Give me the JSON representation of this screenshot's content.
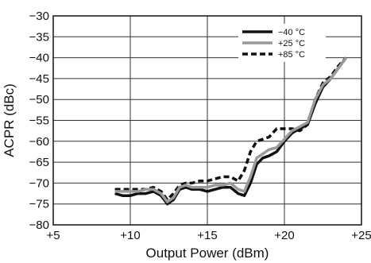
{
  "chart_data": {
    "type": "line",
    "title": "",
    "xlabel": "Output Power (dBm)",
    "ylabel": "ACPR (dBc)",
    "xlim": [
      5,
      25
    ],
    "ylim": [
      -80,
      -30
    ],
    "xticks": [
      5,
      10,
      15,
      20,
      25
    ],
    "xtick_labels": [
      "+5",
      "+10",
      "+15",
      "+20",
      "+25"
    ],
    "yticks": [
      -80,
      -75,
      -70,
      -65,
      -60,
      -55,
      -50,
      -45,
      -40,
      -35,
      -30
    ],
    "ytick_labels": [
      "−80",
      "−75",
      "−70",
      "−65",
      "−60",
      "−55",
      "−50",
      "−45",
      "−40",
      "−35",
      "−30"
    ],
    "grid": true,
    "legend_position": "top-right",
    "series": [
      {
        "name": "−40 °C",
        "color": "#111111",
        "style": "solid",
        "x": [
          9.0,
          9.5,
          10.0,
          10.5,
          11.0,
          11.5,
          12.0,
          12.4,
          12.8,
          13.2,
          13.6,
          14.0,
          14.5,
          15.0,
          15.5,
          16.0,
          16.5,
          17.0,
          17.4,
          17.8,
          18.2,
          18.6,
          19.0,
          19.5,
          20.0,
          20.5,
          21.0,
          21.5,
          22.0,
          22.5,
          23.0,
          23.5,
          24.0
        ],
        "y": [
          -72.5,
          -73,
          -73,
          -72.5,
          -72.5,
          -72,
          -73,
          -75,
          -74,
          -71.5,
          -71,
          -71.5,
          -71.5,
          -72,
          -71.5,
          -71,
          -71,
          -72.5,
          -73,
          -70,
          -65.5,
          -64,
          -63.5,
          -62.5,
          -60,
          -58,
          -57,
          -56,
          -51,
          -47,
          -45,
          -42.5,
          -40
        ]
      },
      {
        "name": "+25 °C",
        "color": "#9a9a9a",
        "style": "solid",
        "x": [
          9.0,
          9.5,
          10.0,
          10.5,
          11.0,
          11.5,
          12.0,
          12.4,
          12.8,
          13.2,
          13.6,
          14.0,
          14.5,
          15.0,
          15.5,
          16.0,
          16.5,
          17.0,
          17.4,
          17.8,
          18.2,
          18.6,
          19.0,
          19.5,
          20.0,
          20.5,
          21.0,
          21.5,
          22.0,
          22.5,
          23.0,
          23.5,
          24.0
        ],
        "y": [
          -72,
          -72,
          -72,
          -72,
          -71.5,
          -71.5,
          -72.5,
          -74.5,
          -73.5,
          -71,
          -70.5,
          -71,
          -71,
          -71,
          -70.5,
          -70.5,
          -70,
          -71.5,
          -72,
          -68.5,
          -64,
          -63,
          -62,
          -61.5,
          -59.5,
          -57.5,
          -56.5,
          -55.5,
          -50,
          -46.5,
          -45,
          -42.5,
          -40
        ]
      },
      {
        "name": "+85 °C",
        "color": "#111111",
        "style": "dashed",
        "x": [
          9.0,
          9.5,
          10.0,
          10.5,
          11.0,
          11.5,
          12.0,
          12.4,
          12.8,
          13.2,
          13.6,
          14.0,
          14.5,
          15.0,
          15.5,
          16.0,
          16.5,
          17.0,
          17.4,
          17.8,
          18.2,
          18.6,
          19.0,
          19.5,
          20.0,
          20.5,
          21.0,
          21.5,
          22.0,
          22.5,
          23.0,
          23.5,
          24.0
        ],
        "y": [
          -71.5,
          -71.5,
          -71.5,
          -71.5,
          -71.5,
          -71,
          -72,
          -74,
          -72.5,
          -70.5,
          -70,
          -70,
          -69.5,
          -69.5,
          -69,
          -68.5,
          -68.5,
          -69.5,
          -67,
          -62.5,
          -60,
          -59.5,
          -59,
          -57,
          -57,
          -57,
          -57.5,
          -56,
          -50,
          -46,
          -44.5,
          -42,
          -40
        ]
      }
    ]
  }
}
